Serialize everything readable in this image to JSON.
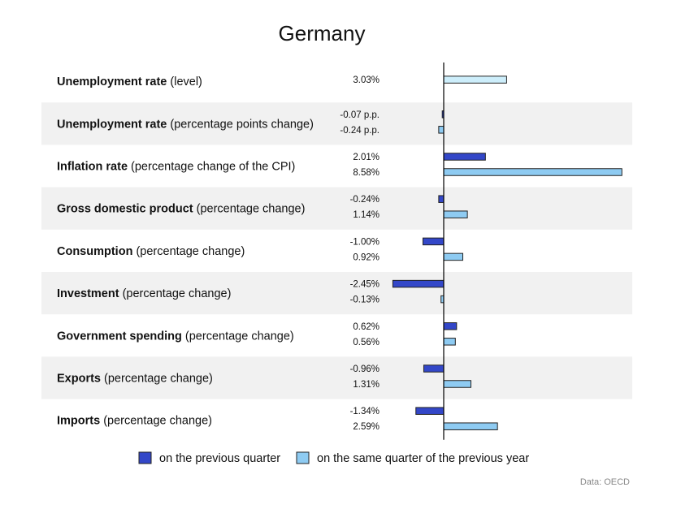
{
  "chart_data": {
    "type": "bar",
    "orientation": "horizontal",
    "title": "Germany",
    "source": "Data: OECD",
    "colors": {
      "previous_quarter": "#3347c8",
      "same_quarter_previous_year": "#8ecbf2",
      "level": "#cdeefb",
      "band": "#f1f1f1",
      "axis": "#000000"
    },
    "legend": [
      {
        "key": "previous_quarter",
        "label": "on the previous quarter"
      },
      {
        "key": "same_quarter_previous_year",
        "label": "on the same quarter of the previous year"
      }
    ],
    "rows": [
      {
        "name": "Unemployment rate",
        "detail": "(level)",
        "bars": [
          {
            "series": "level",
            "value": 3.03,
            "label": "3.03%"
          }
        ]
      },
      {
        "name": "Unemployment rate",
        "detail": "(percentage points change)",
        "bars": [
          {
            "series": "previous_quarter",
            "value": -0.07,
            "label": "-0.07 p.p."
          },
          {
            "series": "same_quarter_previous_year",
            "value": -0.24,
            "label": "-0.24 p.p."
          }
        ]
      },
      {
        "name": "Inflation rate",
        "detail": "(percentage change of the CPI)",
        "bars": [
          {
            "series": "previous_quarter",
            "value": 2.01,
            "label": "2.01%"
          },
          {
            "series": "same_quarter_previous_year",
            "value": 8.58,
            "label": "8.58%"
          }
        ]
      },
      {
        "name": "Gross domestic product",
        "detail": "(percentage change)",
        "bars": [
          {
            "series": "previous_quarter",
            "value": -0.24,
            "label": "-0.24%"
          },
          {
            "series": "same_quarter_previous_year",
            "value": 1.14,
            "label": "1.14%"
          }
        ]
      },
      {
        "name": "Consumption",
        "detail": "(percentage change)",
        "bars": [
          {
            "series": "previous_quarter",
            "value": -1.0,
            "label": "-1.00%"
          },
          {
            "series": "same_quarter_previous_year",
            "value": 0.92,
            "label": "0.92%"
          }
        ]
      },
      {
        "name": "Investment",
        "detail": "(percentage change)",
        "bars": [
          {
            "series": "previous_quarter",
            "value": -2.45,
            "label": "-2.45%"
          },
          {
            "series": "same_quarter_previous_year",
            "value": -0.13,
            "label": "-0.13%"
          }
        ]
      },
      {
        "name": "Government spending",
        "detail": "(percentage change)",
        "bars": [
          {
            "series": "previous_quarter",
            "value": 0.62,
            "label": "0.62%"
          },
          {
            "series": "same_quarter_previous_year",
            "value": 0.56,
            "label": "0.56%"
          }
        ]
      },
      {
        "name": "Exports",
        "detail": "(percentage change)",
        "bars": [
          {
            "series": "previous_quarter",
            "value": -0.96,
            "label": "-0.96%"
          },
          {
            "series": "same_quarter_previous_year",
            "value": 1.31,
            "label": "1.31%"
          }
        ]
      },
      {
        "name": "Imports",
        "detail": "(percentage change)",
        "bars": [
          {
            "series": "previous_quarter",
            "value": -1.34,
            "label": "-1.34%"
          },
          {
            "series": "same_quarter_previous_year",
            "value": 2.59,
            "label": "2.59%"
          }
        ]
      }
    ]
  }
}
